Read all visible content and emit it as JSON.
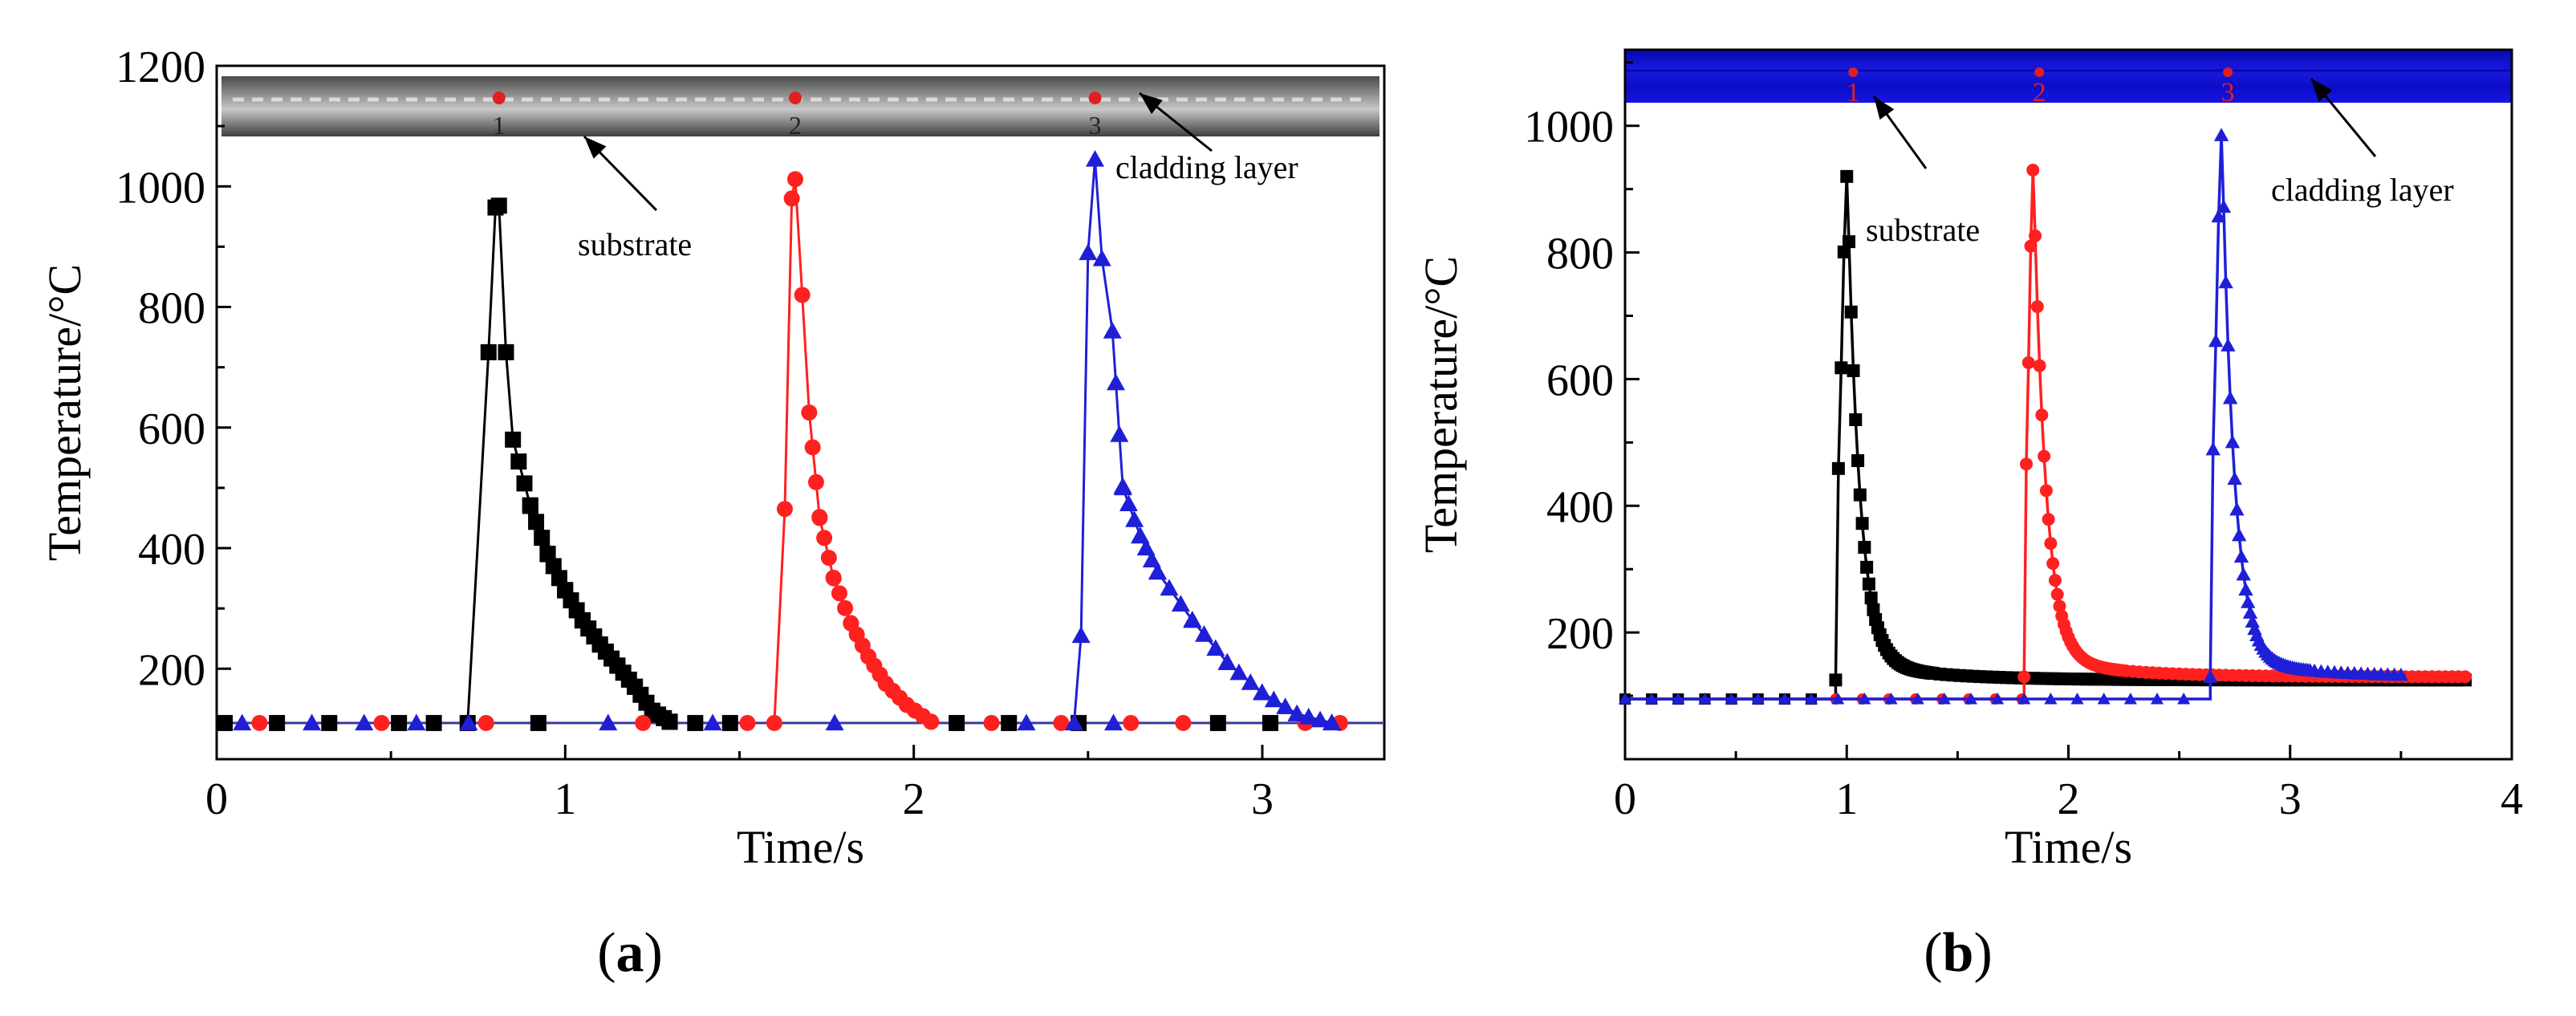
{
  "figure": {
    "panels": [
      {
        "id": "a",
        "caption_open": "(",
        "caption_letter": "a",
        "caption_close": ")",
        "photo_labels": [
          "1",
          "2",
          "3"
        ],
        "annotations": {
          "substrate": "substrate",
          "cladding": "cladding layer"
        }
      },
      {
        "id": "b",
        "caption_open": "(",
        "caption_letter": "b",
        "caption_close": ")",
        "photo_labels": [
          "1",
          "2",
          "3"
        ],
        "annotations": {
          "substrate": "substrate",
          "cladding": "cladding layer"
        }
      }
    ]
  },
  "colors": {
    "series1": "#000000",
    "series2": "#ff2020",
    "series3": "#1f1fd8",
    "photo_a": "#6e6e6e",
    "photo_b": "#1010dc",
    "marker_dot": "#e02020"
  },
  "chart_data": [
    {
      "type": "line",
      "panel": "a",
      "title": "",
      "xlabel": "Time/s",
      "ylabel": "Temperature/°C",
      "xlim": [
        0,
        3.35
      ],
      "ylim": [
        50,
        1200
      ],
      "xticks": [
        0,
        1,
        2,
        3
      ],
      "yticks": [
        200,
        400,
        600,
        800,
        1000,
        1200
      ],
      "baseline": 110,
      "series": [
        {
          "name": "1",
          "marker": "square",
          "peak_time": 0.81,
          "peak_value": 968,
          "rise": [
            [
              0.72,
              110
            ],
            [
              0.78,
              725
            ],
            [
              0.8,
              965
            ],
            [
              0.81,
              968
            ],
            [
              0.83,
              725
            ]
          ],
          "decay": [
            [
              0.85,
              580
            ],
            [
              0.9,
              470
            ],
            [
              0.95,
              390
            ],
            [
              1.0,
              330
            ],
            [
              1.05,
              280
            ],
            [
              1.1,
              240
            ],
            [
              1.15,
              205
            ],
            [
              1.2,
              170
            ],
            [
              1.25,
              130
            ],
            [
              1.3,
              112
            ]
          ],
          "baseline_markers": [
            0.0,
            0.15,
            0.3,
            0.5,
            0.6,
            0.9,
            1.35,
            1.45,
            2.1,
            2.25,
            2.45,
            2.85,
            3.0
          ]
        },
        {
          "name": "2",
          "marker": "circle",
          "peak_time": 1.66,
          "peak_value": 1012,
          "rise": [
            [
              1.6,
              110
            ],
            [
              1.63,
              465
            ],
            [
              1.65,
              980
            ],
            [
              1.66,
              1012
            ],
            [
              1.68,
              820
            ]
          ],
          "decay": [
            [
              1.7,
              625
            ],
            [
              1.73,
              450
            ],
            [
              1.77,
              350
            ],
            [
              1.82,
              275
            ],
            [
              1.87,
              220
            ],
            [
              1.92,
              175
            ],
            [
              1.98,
              140
            ],
            [
              2.05,
              112
            ]
          ],
          "baseline_markers": [
            0.1,
            0.45,
            0.75,
            1.2,
            1.5,
            2.2,
            2.4,
            2.6,
            2.75,
            3.1,
            3.2
          ]
        },
        {
          "name": "3",
          "marker": "triangle",
          "peak_time": 2.52,
          "peak_value": 1045,
          "rise": [
            [
              2.46,
              110
            ],
            [
              2.48,
              255
            ],
            [
              2.5,
              890
            ],
            [
              2.52,
              1045
            ],
            [
              2.54,
              880
            ]
          ],
          "decay": [
            [
              2.57,
              760
            ],
            [
              2.6,
              500
            ],
            [
              2.65,
              420
            ],
            [
              2.7,
              360
            ],
            [
              2.8,
              280
            ],
            [
              2.9,
              210
            ],
            [
              3.0,
              160
            ],
            [
              3.1,
              125
            ],
            [
              3.2,
              110
            ]
          ],
          "baseline_markers": [
            0.05,
            0.25,
            0.4,
            0.55,
            0.7,
            1.1,
            1.4,
            1.75,
            2.3,
            2.55
          ]
        }
      ]
    },
    {
      "type": "line",
      "panel": "b",
      "title": "",
      "xlabel": "Time/s",
      "ylabel": "Temperature/°C",
      "xlim": [
        0,
        4
      ],
      "ylim": [
        0,
        1120
      ],
      "xticks": [
        0,
        1,
        2,
        3,
        4
      ],
      "yticks": [
        200,
        400,
        600,
        800,
        1000
      ],
      "baseline": 95,
      "series": [
        {
          "name": "1",
          "marker": "square",
          "peak_time": 1.0,
          "peak_value": 920,
          "onset": 0.95,
          "plateau": 125,
          "end_time": 3.8,
          "pre_from": 0.0
        },
        {
          "name": "2",
          "marker": "circle",
          "peak_time": 1.84,
          "peak_value": 930,
          "onset": 1.8,
          "plateau": 130,
          "end_time": 3.8,
          "pre_from": 0.95
        },
        {
          "name": "3",
          "marker": "triangle",
          "peak_time": 2.69,
          "peak_value": 985,
          "onset": 2.64,
          "plateau": 130,
          "end_time": 3.52,
          "pre_from": 0.0
        }
      ]
    }
  ]
}
